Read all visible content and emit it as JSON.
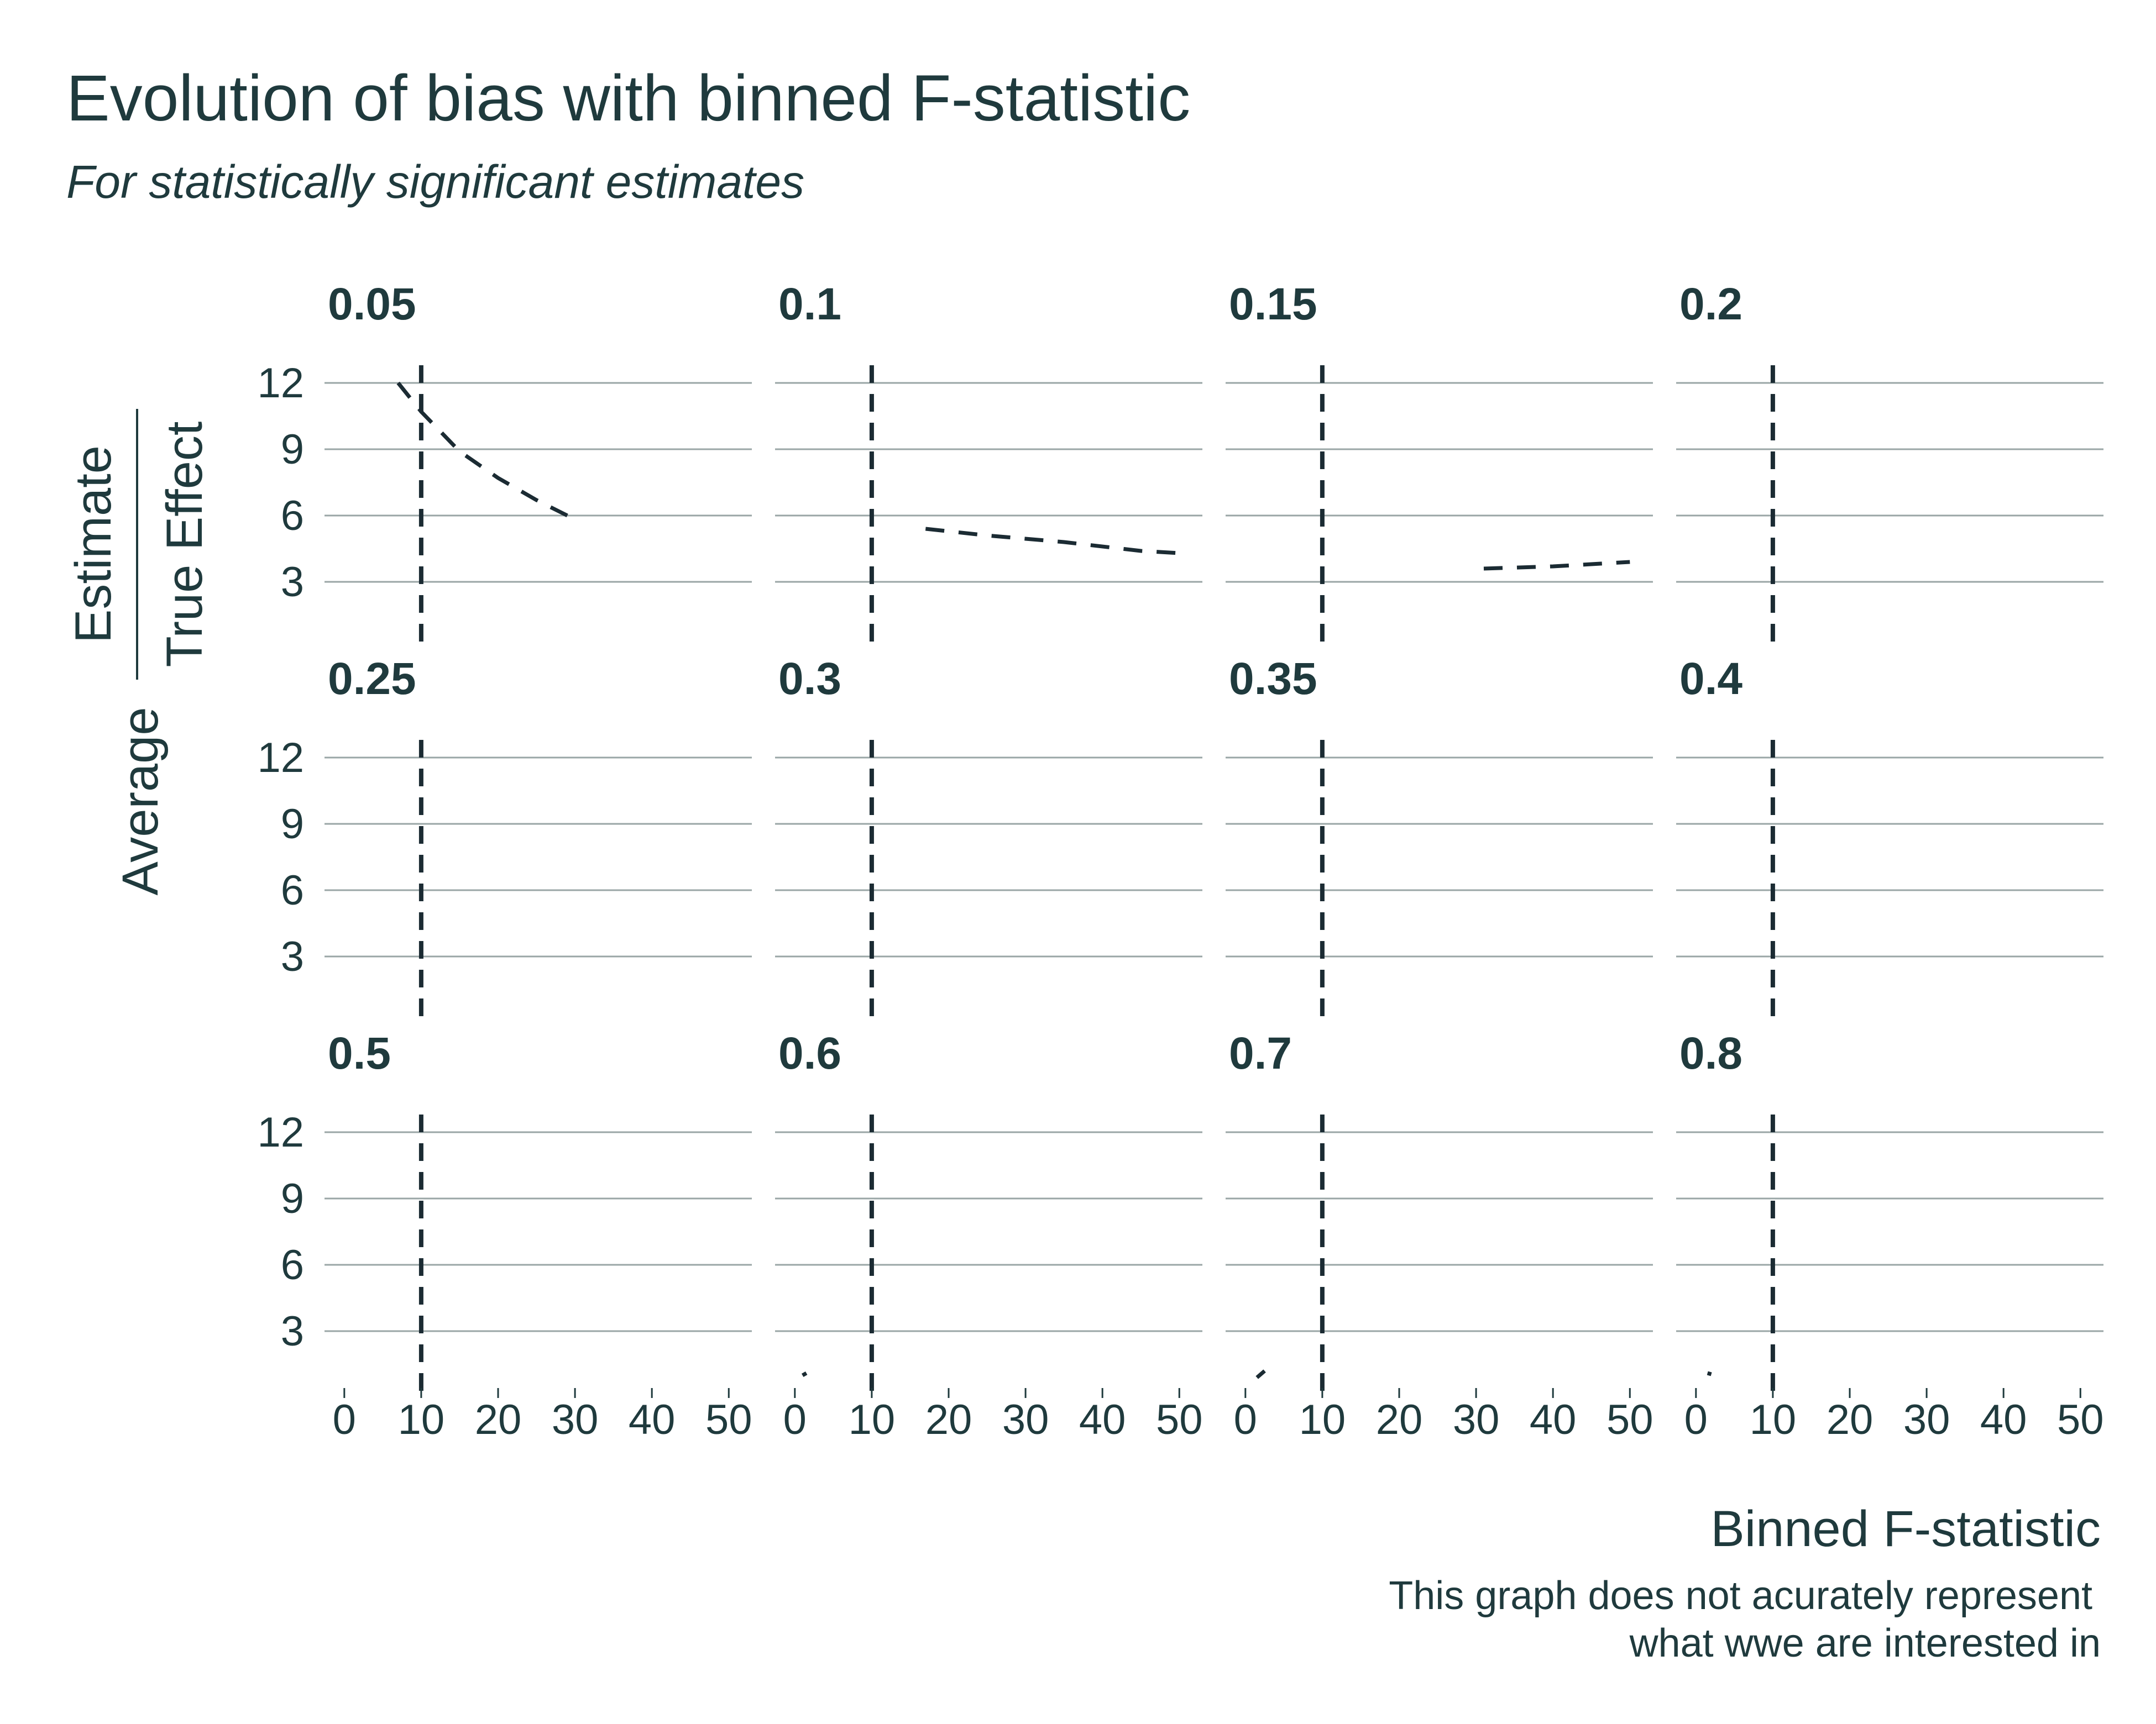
{
  "chart_data": {
    "type": "line",
    "title": "Evolution of bias with binned F-statistic",
    "subtitle": "For statistically significant estimates",
    "xlabel": "Binned F-statistic",
    "ylabel": {
      "prefix": "Average",
      "numerator": "Estimate",
      "denominator": "True Effect"
    },
    "caption": [
      "This graph does not acurately represent",
      "what wwe are interested in"
    ],
    "xlim": [
      -2,
      53
    ],
    "ylim": [
      0.5,
      12.5
    ],
    "x_ticks": [
      0,
      10,
      20,
      30,
      40,
      50
    ],
    "y_ticks": [
      3,
      6,
      9,
      12
    ],
    "reference_x": 10,
    "grid": true,
    "facets": [
      {
        "label": "0.05",
        "x": [
          7,
          10,
          15,
          20,
          25,
          29
        ],
        "y": [
          12,
          10.7,
          8.9,
          7.7,
          6.7,
          6
        ]
      },
      {
        "label": "0.1",
        "x": [
          17,
          25,
          35,
          45,
          50
        ],
        "y": [
          5.4,
          5.1,
          4.8,
          4.4,
          4.3
        ]
      },
      {
        "label": "0.15",
        "x": [
          31,
          40,
          50
        ],
        "y": [
          3.6,
          3.7,
          3.9
        ]
      },
      {
        "label": "0.2",
        "x": [],
        "y": []
      },
      {
        "label": "0.25",
        "x": [],
        "y": []
      },
      {
        "label": "0.3",
        "x": [],
        "y": []
      },
      {
        "label": "0.35",
        "x": [],
        "y": []
      },
      {
        "label": "0.4",
        "x": [],
        "y": []
      },
      {
        "label": "0.5",
        "x": [],
        "y": []
      },
      {
        "label": "0.6",
        "x": [
          1,
          1.5
        ],
        "y": [
          1.0,
          1.1
        ]
      },
      {
        "label": "0.7",
        "x": [
          1.5,
          2.5
        ],
        "y": [
          0.9,
          1.2
        ]
      },
      {
        "label": "0.8",
        "x": [
          1.5,
          2
        ],
        "y": [
          1.1,
          1.05
        ]
      }
    ]
  }
}
